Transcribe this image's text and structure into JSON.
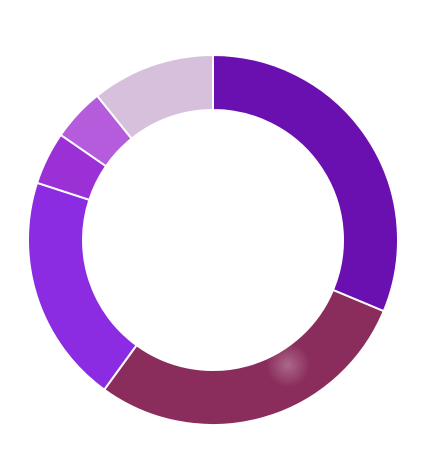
{
  "chart_data": {
    "type": "pie",
    "donut": true,
    "legend": "none",
    "title": "",
    "slices": [
      {
        "value": 30.5,
        "color": "#6a0fb0"
      },
      {
        "value": 28.0,
        "color": "#8b2d5c"
      },
      {
        "value": 19.5,
        "color": "#8b2be2"
      },
      {
        "value": 4.5,
        "color": "#9b30d6"
      },
      {
        "value": 4.5,
        "color": "#b55cdc"
      },
      {
        "value": 10.5,
        "color": "#d6c0dc"
      }
    ]
  }
}
